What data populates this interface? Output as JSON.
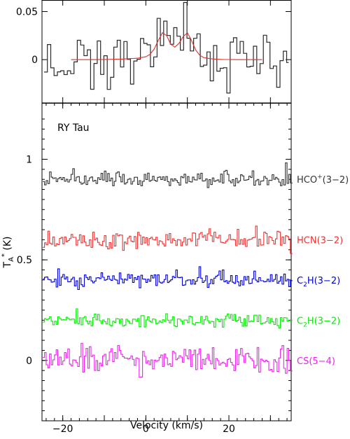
{
  "chart_data": [
    {
      "type": "line",
      "panel": "top",
      "xlim": [
        -25,
        35
      ],
      "ylim": [
        -0.045,
        0.062
      ],
      "yticks": [
        {
          "value": 0,
          "label": "0"
        },
        {
          "value": 0.05,
          "label": "0.05"
        }
      ],
      "series": [
        {
          "style": "histogram",
          "color": "#2a2a2a",
          "baseline": 0,
          "amplitude": 0.018,
          "x_range": [
            -24.5,
            34.5
          ],
          "step": 0.8
        },
        {
          "style": "fit",
          "color": "#e0302a",
          "x": [
            -18,
            -12,
            -6,
            -2,
            0,
            1,
            2,
            3,
            4,
            5,
            6,
            7,
            8,
            9,
            10,
            11,
            12,
            13,
            14,
            16,
            18,
            22,
            28
          ],
          "values": [
            0,
            0,
            0.0005,
            0.0015,
            0.003,
            0.0055,
            0.011,
            0.02,
            0.028,
            0.025,
            0.016,
            0.013,
            0.017,
            0.024,
            0.028,
            0.02,
            0.01,
            0.0045,
            0.002,
            0.0008,
            0.0002,
            0,
            0
          ]
        }
      ]
    },
    {
      "type": "line",
      "panel": "bottom",
      "title": "RY Tau",
      "xlabel": "Velocity (km/s)",
      "ylabel": "T",
      "ylabel_sub": "A",
      "ylabel_sup": "*",
      "ylabel_tail": " (K)",
      "xlim": [
        -25,
        35
      ],
      "ylim": [
        -0.3,
        1.28
      ],
      "xticks": [
        {
          "value": -20,
          "label": "−20"
        },
        {
          "value": 0,
          "label": "0"
        },
        {
          "value": 20,
          "label": "20"
        }
      ],
      "yticks": [
        {
          "value": 0,
          "label": "0"
        },
        {
          "value": 0.5,
          "label": "0.5"
        },
        {
          "value": 1,
          "label": "1"
        }
      ],
      "series": [
        {
          "name": "HCO⁺(3−2)",
          "label_parts": [
            "HCO",
            "+",
            "(3−2)"
          ],
          "label_kind": "sup",
          "offset": 0.9,
          "color": "#333333",
          "noise": 0.02
        },
        {
          "name": "HCN(3−2)",
          "label_parts": [
            "HCN(3−2)"
          ],
          "label_kind": "plain",
          "offset": 0.6,
          "color": "#ee3333",
          "noise": 0.025
        },
        {
          "name": "C₂H(3−2)",
          "label_parts": [
            "C",
            "2",
            "H(3−2)"
          ],
          "label_kind": "sub",
          "offset": 0.4,
          "color": "#0000dd",
          "noise": 0.018
        },
        {
          "name": "C₂H(3−2)",
          "label_parts": [
            "C",
            "2",
            "H(3−2)"
          ],
          "label_kind": "sub",
          "offset": 0.2,
          "color": "#00ee00",
          "noise": 0.018
        },
        {
          "name": "CS(5−4)",
          "label_parts": [
            "CS(5−4)"
          ],
          "label_kind": "plain",
          "offset": 0.0,
          "color": "#ee22ee",
          "noise": 0.035
        }
      ]
    }
  ]
}
